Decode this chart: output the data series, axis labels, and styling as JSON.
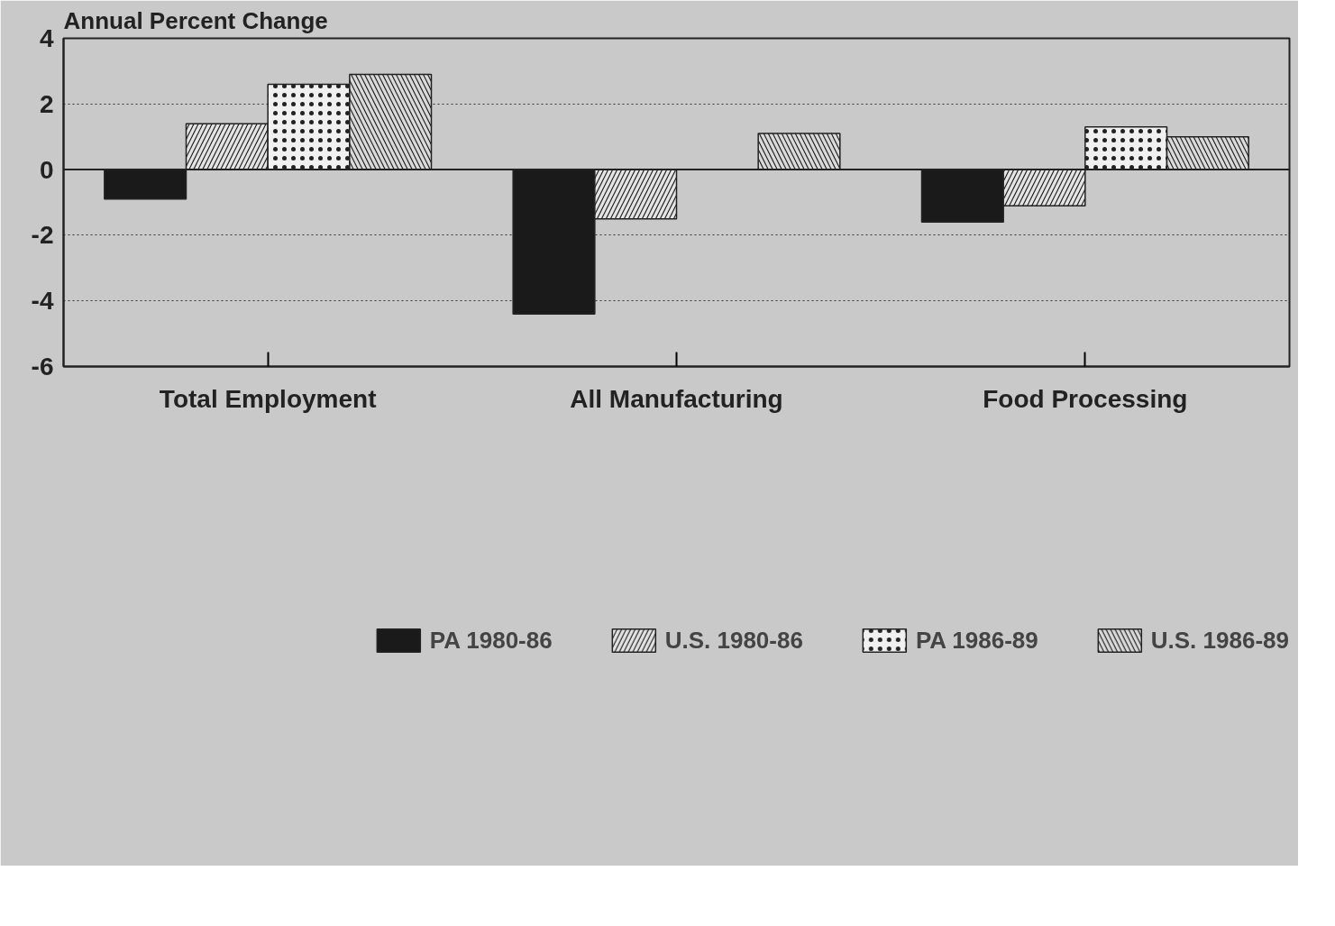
{
  "chart_data": {
    "type": "bar",
    "ylabel": "Annual Percent Change",
    "categories": [
      "Total Employment",
      "All Manufacturing",
      "Food Processing"
    ],
    "series": [
      {
        "name": "PA 1980-86",
        "color": "#1a1a1a",
        "values": [
          -0.9,
          -4.4,
          -1.6
        ]
      },
      {
        "name": "U.S. 1980-86",
        "color": "#e4e4e4",
        "values": [
          1.4,
          -1.5,
          -1.1
        ]
      },
      {
        "name": "PA 1986-89",
        "color": "#f0f0f0",
        "values": [
          2.6,
          null,
          1.3
        ]
      },
      {
        "name": "U.S. 1986-89",
        "color": "#dadada",
        "values": [
          2.9,
          1.1,
          1.0
        ]
      }
    ],
    "ylim": [
      -6,
      4
    ],
    "yticks": [
      -6,
      -4,
      -2,
      0,
      2,
      4
    ],
    "grid": "y",
    "legend": "bottom"
  }
}
